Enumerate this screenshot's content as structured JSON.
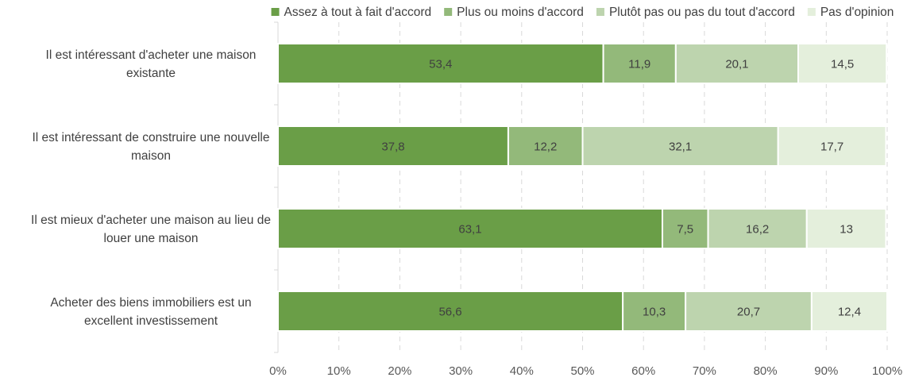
{
  "chart_data": {
    "type": "bar",
    "orientation": "horizontal",
    "stacked": true,
    "percent_stacked": true,
    "title": "",
    "xlabel": "",
    "ylabel": "",
    "xlim": [
      0,
      100
    ],
    "x_ticks": [
      "0%",
      "10%",
      "20%",
      "30%",
      "40%",
      "50%",
      "60%",
      "70%",
      "80%",
      "90%",
      "100%"
    ],
    "grid": "vertical",
    "legend_position": "top",
    "categories": [
      "Il est intéressant d'acheter une maison existante",
      "Il est intéressant de construire une nouvelle maison",
      "Il est mieux d'acheter une maison au lieu de louer une maison",
      "Acheter des biens immobiliers est un excellent investissement"
    ],
    "category_lines": [
      [
        "Il est intéressant d'acheter une maison",
        "existante"
      ],
      [
        "Il est intéressant de construire une nouvelle",
        "maison"
      ],
      [
        "Il est mieux d'acheter une maison au lieu de",
        "louer une maison"
      ],
      [
        "Acheter des biens immobiliers est un",
        "excellent investissement"
      ]
    ],
    "series": [
      {
        "name": "Assez à tout à fait d'accord",
        "color": "#6a9e47",
        "values": [
          53.4,
          37.8,
          63.1,
          56.6
        ],
        "labels": [
          "53,4",
          "37,8",
          "63,1",
          "56,6"
        ]
      },
      {
        "name": "Plus ou moins d'accord",
        "color": "#93b97a",
        "values": [
          11.9,
          12.2,
          7.5,
          10.3
        ],
        "labels": [
          "11,9",
          "12,2",
          "7,5",
          "10,3"
        ]
      },
      {
        "name": "Plutôt pas ou pas du tout d'accord",
        "color": "#bdd4ae",
        "values": [
          20.1,
          32.1,
          16.2,
          20.7
        ],
        "labels": [
          "20,1",
          "32,1",
          "16,2",
          "20,7"
        ]
      },
      {
        "name": "Pas d'opinion",
        "color": "#e4efdc",
        "values": [
          14.5,
          17.7,
          13,
          12.4
        ],
        "labels": [
          "14,5",
          "17,7",
          "13",
          "12,4"
        ]
      }
    ]
  }
}
